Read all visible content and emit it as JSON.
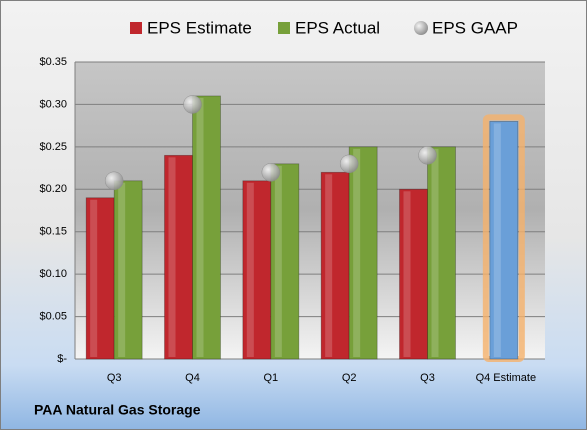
{
  "chart_data": {
    "type": "bar",
    "footer": "PAA Natural Gas Storage",
    "categories": [
      "Q3",
      "Q4",
      "Q1",
      "Q2",
      "Q3",
      "Q4 Estimate"
    ],
    "series": [
      {
        "name": "EPS Estimate",
        "color": "#c0272d",
        "values": [
          0.19,
          0.24,
          0.21,
          0.22,
          0.2,
          null
        ]
      },
      {
        "name": "EPS Actual",
        "color": "#77a03a",
        "values": [
          0.21,
          0.31,
          0.23,
          0.25,
          0.25,
          null
        ]
      },
      {
        "name": "EPS GAAP",
        "color": "#a6a6a6",
        "marker": "circle",
        "values": [
          0.21,
          0.3,
          0.22,
          0.23,
          0.24,
          null
        ]
      },
      {
        "color": "#6a9fd8",
        "highlight": true,
        "values": [
          null,
          null,
          null,
          null,
          null,
          0.28
        ]
      }
    ],
    "ylim": [
      0,
      0.35
    ],
    "yticks": [
      {
        "value": 0,
        "label": "$-"
      },
      {
        "value": 0.05,
        "label": "$0.05"
      },
      {
        "value": 0.1,
        "label": "$0.10"
      },
      {
        "value": 0.15,
        "label": "$0.15"
      },
      {
        "value": 0.2,
        "label": "$0.20"
      },
      {
        "value": 0.25,
        "label": "$0.25"
      },
      {
        "value": 0.3,
        "label": "$0.30"
      },
      {
        "value": 0.35,
        "label": "$0.35"
      }
    ],
    "grid": true
  }
}
